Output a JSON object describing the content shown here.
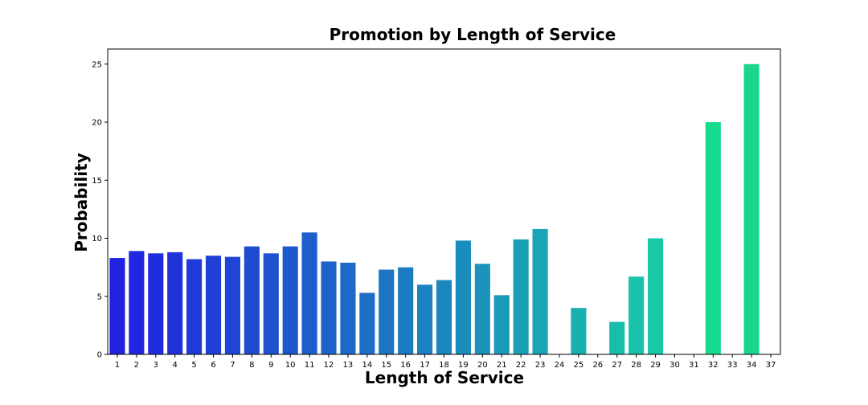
{
  "chart_data": {
    "type": "bar",
    "title": "Promotion by Length of Service",
    "xlabel": "Length of Service",
    "ylabel": "Probability",
    "categories": [
      "1",
      "2",
      "3",
      "4",
      "5",
      "6",
      "7",
      "8",
      "9",
      "10",
      "11",
      "12",
      "13",
      "14",
      "15",
      "16",
      "17",
      "18",
      "19",
      "20",
      "21",
      "22",
      "23",
      "24",
      "25",
      "26",
      "27",
      "28",
      "29",
      "30",
      "31",
      "32",
      "33",
      "34",
      "37"
    ],
    "values": [
      8.3,
      8.9,
      8.7,
      8.8,
      8.2,
      8.5,
      8.4,
      9.3,
      8.7,
      9.3,
      10.5,
      8.0,
      7.9,
      5.3,
      7.3,
      7.5,
      6.0,
      6.4,
      9.8,
      7.8,
      5.1,
      9.9,
      10.8,
      0,
      4.0,
      0,
      2.8,
      6.7,
      10.0,
      0,
      0,
      20.0,
      0,
      25.0,
      0
    ],
    "ylim": [
      0,
      26.3
    ],
    "yticks": [
      "0",
      "5",
      "10",
      "15",
      "20",
      "25"
    ],
    "grid": false,
    "colors": [
      "#2121e0",
      "#2127de",
      "#202ddc",
      "#2033da",
      "#2039d8",
      "#203fd6",
      "#1f45d4",
      "#1f4bd2",
      "#1f51d0",
      "#1e57ce",
      "#1e5dcc",
      "#1e63ca",
      "#1d69c8",
      "#1d6fc6",
      "#1d75c4",
      "#1c7bc2",
      "#1c81c0",
      "#1c87be",
      "#1b8dbc",
      "#1b93ba",
      "#1b99b8",
      "#1a9fb6",
      "#1aa5b4",
      "#1aabb2",
      "#19b1b0",
      "#19b7ae",
      "#19bdac",
      "#18c3aa",
      "#18c9a8",
      "#18cfa6",
      "#17d5a4",
      "#17db8c",
      "#17e0a0",
      "#1bd68a",
      "#1bd68a"
    ]
  }
}
